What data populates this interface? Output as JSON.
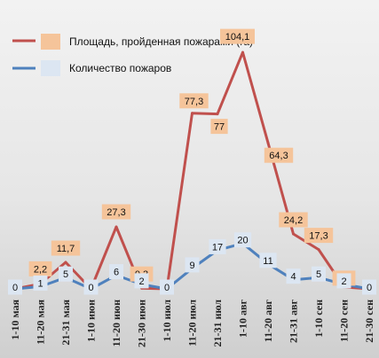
{
  "chart_data": {
    "type": "line",
    "categories": [
      "1-10 мая",
      "11-20 мая",
      "21-31 мая",
      "1-10 июн",
      "11-20 июн",
      "21-30 июн",
      "1-10 июл",
      "11-20 июл",
      "21-31 июл",
      "1-10 авг",
      "11-20 авг",
      "21-31 авг",
      "1-10 сен",
      "11-20 сен",
      "21-30 сен"
    ],
    "series": [
      {
        "name": "Площадь, пройденная пожарами (га)",
        "color": "#c0504d",
        "label_color": "#f5c49a",
        "values": [
          0,
          2.2,
          11.7,
          0,
          27.3,
          0.3,
          0,
          77.3,
          77,
          104.1,
          64.3,
          24.2,
          17.3,
          0.8,
          0
        ],
        "labels": [
          "",
          "2,2",
          "11,7",
          "",
          "27,3",
          "0,3",
          "",
          "77,3",
          "77",
          "104,1",
          "64,3",
          "24,2",
          "17,3",
          "0,8",
          ""
        ]
      },
      {
        "name": "Количество  пожаров",
        "color": "#4f81bd",
        "label_color": "#dce6f2",
        "values": [
          0,
          1,
          5,
          0,
          6,
          2,
          0,
          9,
          17,
          20,
          11,
          4,
          5,
          2,
          0
        ],
        "labels": [
          "0",
          "1",
          "5",
          "0",
          "6",
          "2",
          "0",
          "9",
          "17",
          "20",
          "11",
          "4",
          "5",
          "2",
          "0"
        ]
      }
    ],
    "ylim": [
      0,
      110
    ],
    "title": "",
    "xlabel": "",
    "ylabel": "",
    "grid": false,
    "legend": "top-left"
  }
}
